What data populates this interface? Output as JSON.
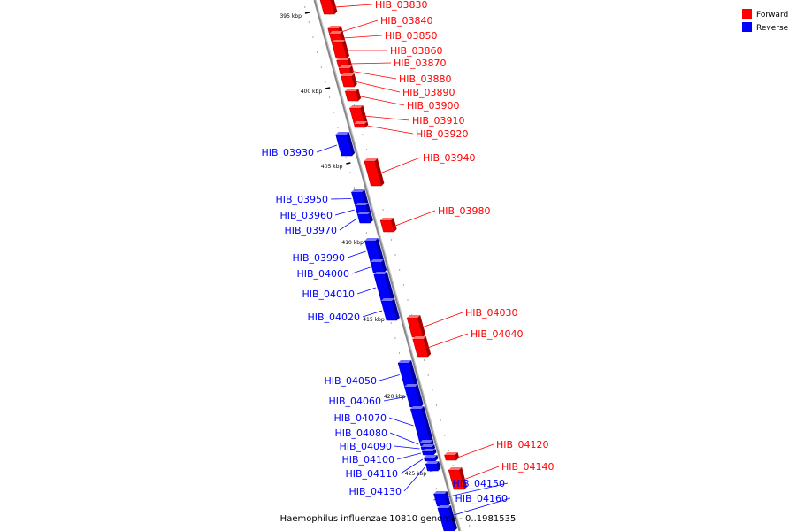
{
  "legend": [
    {
      "label": "Forward",
      "color": "#ff0000"
    },
    {
      "label": "Reverse",
      "color": "#0000ff"
    }
  ],
  "caption": "Haemophilus influenzae 10810 genome - 0..1981535",
  "colors": {
    "forward": "#ff0000",
    "reverse": "#0000ff",
    "axis": "#888888"
  },
  "position_marks": [
    "395 kbp",
    "400 kbp",
    "405 kbp",
    "410 kbp",
    "415 kbp",
    "420 kbp",
    "425 kbp"
  ],
  "genes": [
    {
      "name": "HIB_03830",
      "strand": "forward"
    },
    {
      "name": "HIB_03840",
      "strand": "forward"
    },
    {
      "name": "HIB_03850",
      "strand": "forward"
    },
    {
      "name": "HIB_03860",
      "strand": "forward"
    },
    {
      "name": "HIB_03870",
      "strand": "forward"
    },
    {
      "name": "HIB_03880",
      "strand": "forward"
    },
    {
      "name": "HIB_03890",
      "strand": "forward"
    },
    {
      "name": "HIB_03900",
      "strand": "forward"
    },
    {
      "name": "HIB_03910",
      "strand": "forward"
    },
    {
      "name": "HIB_03920",
      "strand": "forward"
    },
    {
      "name": "HIB_03930",
      "strand": "reverse"
    },
    {
      "name": "HIB_03940",
      "strand": "forward"
    },
    {
      "name": "HIB_03950",
      "strand": "reverse"
    },
    {
      "name": "HIB_03960",
      "strand": "reverse"
    },
    {
      "name": "HIB_03970",
      "strand": "reverse"
    },
    {
      "name": "HIB_03980",
      "strand": "forward"
    },
    {
      "name": "HIB_03990",
      "strand": "reverse"
    },
    {
      "name": "HIB_04000",
      "strand": "reverse"
    },
    {
      "name": "HIB_04010",
      "strand": "reverse"
    },
    {
      "name": "HIB_04020",
      "strand": "reverse"
    },
    {
      "name": "HIB_04030",
      "strand": "forward"
    },
    {
      "name": "HIB_04040",
      "strand": "forward"
    },
    {
      "name": "HIB_04050",
      "strand": "reverse"
    },
    {
      "name": "HIB_04060",
      "strand": "reverse"
    },
    {
      "name": "HIB_04070",
      "strand": "reverse"
    },
    {
      "name": "HIB_04080",
      "strand": "reverse"
    },
    {
      "name": "HIB_04090",
      "strand": "reverse"
    },
    {
      "name": "HIB_04100",
      "strand": "reverse"
    },
    {
      "name": "HIB_04110",
      "strand": "reverse"
    },
    {
      "name": "HIB_04120",
      "strand": "forward"
    },
    {
      "name": "HIB_04130",
      "strand": "reverse"
    },
    {
      "name": "HIB_04140",
      "strand": "forward"
    },
    {
      "name": "HIB_04150",
      "strand": "reverse"
    },
    {
      "name": "HIB_04160",
      "strand": "reverse"
    }
  ]
}
